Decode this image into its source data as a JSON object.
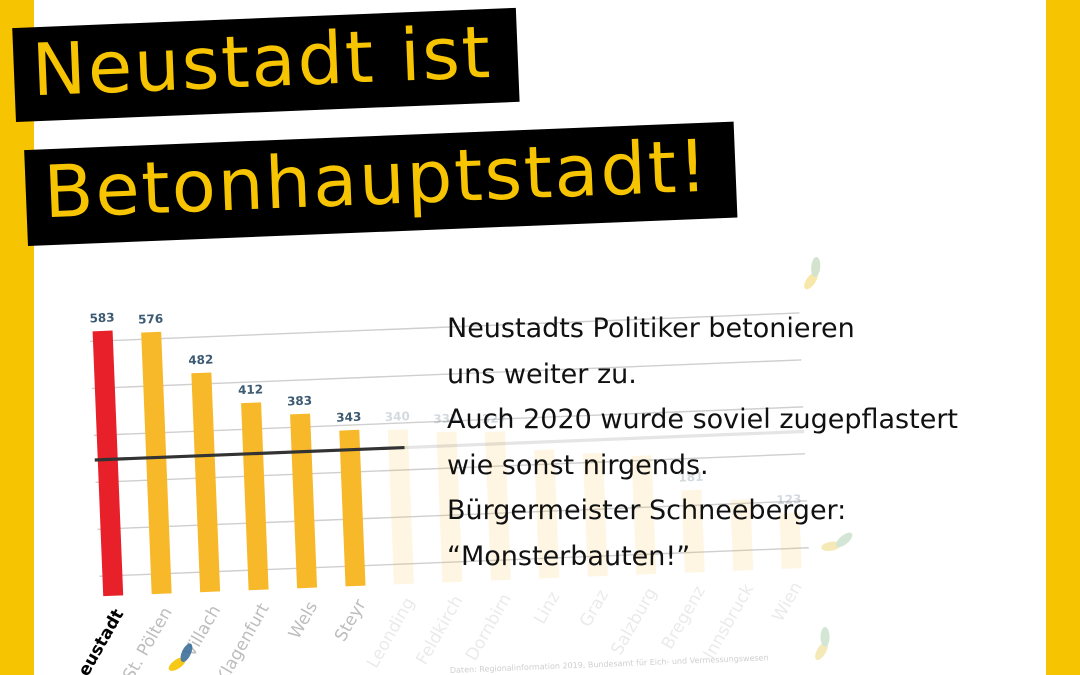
{
  "headline": {
    "line1": "Neustadt ist",
    "line2": "Betonhauptstadt!"
  },
  "body_lines": [
    "Neustadts Politiker betonieren",
    "uns weiter zu.",
    "Auch 2020 wurde soviel zugepflastert",
    "wie sonst nirgends.",
    "Bürgermeister Schneeberger:",
    "“Monsterbauten!”"
  ],
  "colors": {
    "yellow": "#f6c400",
    "highlight_bar": "#e8202a",
    "bar": "#f7b82a",
    "value_label": "#3d5a73",
    "average_line": "#333333"
  },
  "chart_data": {
    "type": "bar",
    "categories": [
      "Neustadt",
      "St. Pölten",
      "Villach",
      "Klagenfurt",
      "Wels",
      "Steyr",
      "Leonding",
      "Feldkirch",
      "Dornbirn",
      "Linz",
      "Graz",
      "Salzburg",
      "Bregenz",
      "Innsbruck",
      "Wien"
    ],
    "values": [
      583,
      576,
      482,
      412,
      383,
      343,
      340,
      331,
      327,
      283,
      271,
      261,
      181,
      156,
      123
    ],
    "value_labels": [
      "583",
      "576",
      "482",
      "412",
      "383",
      "343",
      "340",
      "331",
      "327",
      "",
      "",
      "",
      "181",
      "",
      "123"
    ],
    "highlighted": "Neustadt",
    "average": 300,
    "source": "Daten: Regionalinformation 2019, Bundesamt für Eich- und Vermessungswesen"
  }
}
